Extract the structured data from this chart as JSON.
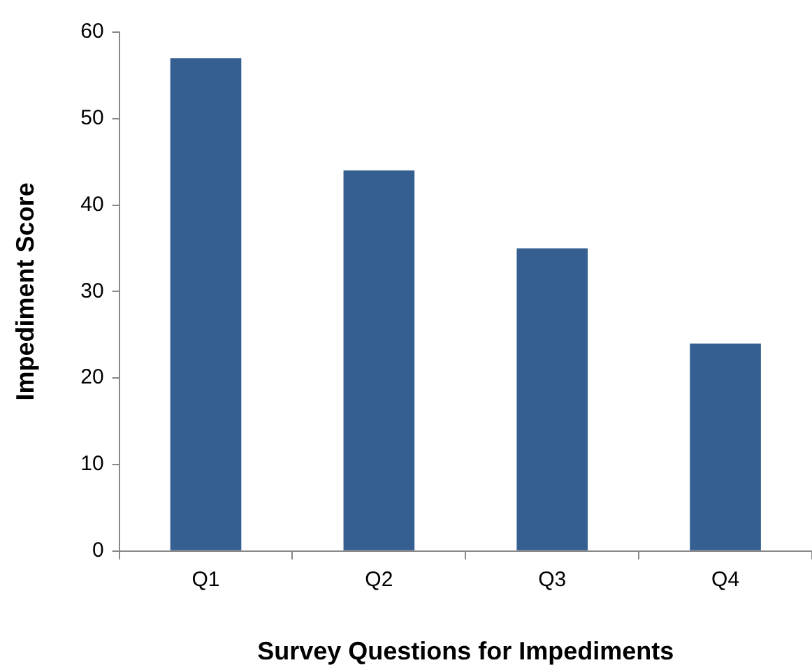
{
  "chart_data": {
    "type": "bar",
    "xlabel": "Survey Questions for Impediments",
    "ylabel": "Impediment Score",
    "categories": [
      "Q1",
      "Q2",
      "Q3",
      "Q4"
    ],
    "values": [
      57,
      44,
      35,
      24
    ],
    "color": "#355f91",
    "ylim": [
      0,
      60
    ],
    "yticks": [
      0,
      10,
      20,
      30,
      40,
      50,
      60
    ],
    "grid": false,
    "legend": false
  }
}
